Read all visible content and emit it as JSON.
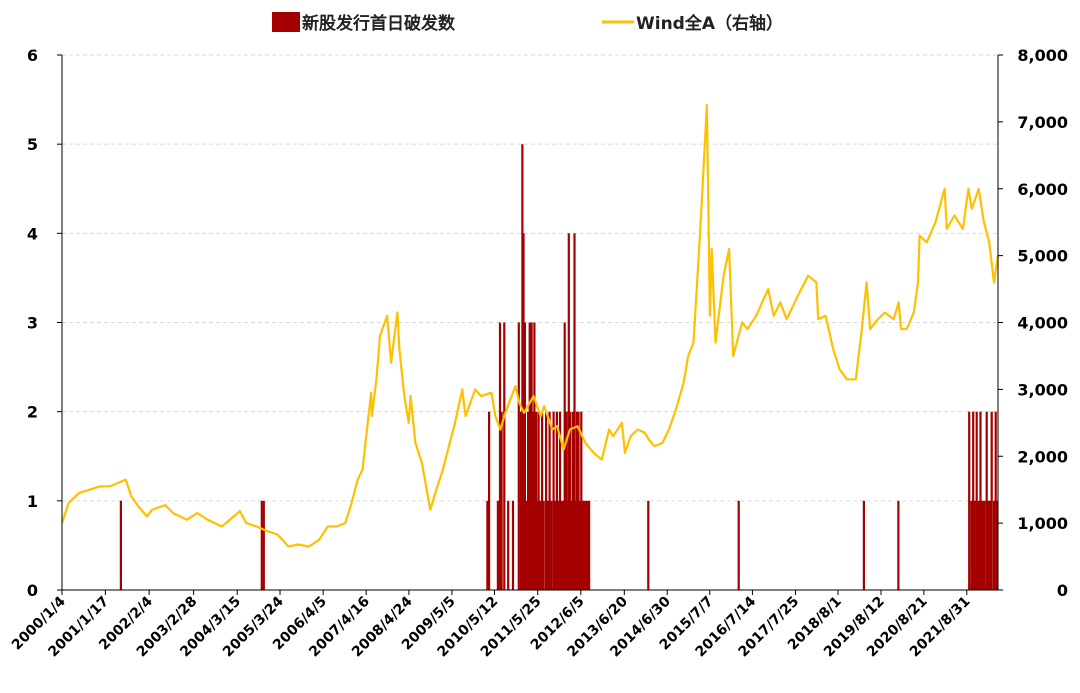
{
  "chart_data": {
    "type": "bar+line",
    "title": "",
    "legend": {
      "position": "top",
      "entries": [
        "新股发行首日破发数",
        "Wind全A（右轴）"
      ]
    },
    "colors": {
      "bars": "#A50000",
      "line": "#FFC000",
      "grid": "#D9D9D9"
    },
    "grid": true,
    "x_date_range": [
      "2000-01-04",
      "2022-05-31"
    ],
    "x_tick_labels": [
      "2000/1/4",
      "2001/1/17",
      "2002/2/4",
      "2003/2/28",
      "2004/3/15",
      "2005/3/24",
      "2006/4/5",
      "2007/4/16",
      "2008/4/24",
      "2009/5/5",
      "2010/5/12",
      "2011/5/25",
      "2012/6/5",
      "2013/6/20",
      "2014/6/30",
      "2015/7/7",
      "2016/7/14",
      "2017/7/25",
      "2018/8/1",
      "2019/8/12",
      "2020/8/21",
      "2021/8/31"
    ],
    "y_left": {
      "ylim": [
        0,
        6
      ],
      "ticks": [
        "0",
        "1",
        "2",
        "3",
        "4",
        "5",
        "6"
      ]
    },
    "y_right": {
      "ylim": [
        0,
        8000
      ],
      "ticks": [
        "0",
        "1,000",
        "2,000",
        "3,000",
        "4,000",
        "5,000",
        "6,000",
        "7,000",
        "8,000"
      ]
    },
    "bar_series": {
      "name": "新股发行首日破发数",
      "points": [
        [
          "2001-06-01",
          1
        ],
        [
          "2004-10-15",
          1
        ],
        [
          "2004-11-01",
          1
        ],
        [
          "2010-03-10",
          1
        ],
        [
          "2010-03-25",
          2
        ],
        [
          "2010-06-10",
          1
        ],
        [
          "2010-06-28",
          3
        ],
        [
          "2010-07-12",
          2
        ],
        [
          "2010-08-05",
          3
        ],
        [
          "2010-09-08",
          1
        ],
        [
          "2010-10-20",
          1
        ],
        [
          "2010-12-10",
          3
        ],
        [
          "2010-12-28",
          2
        ],
        [
          "2011-01-10",
          5
        ],
        [
          "2011-01-20",
          4
        ],
        [
          "2011-02-01",
          3
        ],
        [
          "2011-02-15",
          1
        ],
        [
          "2011-03-01",
          2
        ],
        [
          "2011-03-15",
          3
        ],
        [
          "2011-04-01",
          3
        ],
        [
          "2011-04-12",
          2
        ],
        [
          "2011-04-25",
          3
        ],
        [
          "2011-05-10",
          2
        ],
        [
          "2011-05-20",
          1
        ],
        [
          "2011-06-01",
          2
        ],
        [
          "2011-06-15",
          1
        ],
        [
          "2011-07-01",
          2
        ],
        [
          "2011-07-15",
          1
        ],
        [
          "2011-08-05",
          2
        ],
        [
          "2011-08-20",
          1
        ],
        [
          "2011-09-05",
          2
        ],
        [
          "2011-09-20",
          1
        ],
        [
          "2011-10-10",
          2
        ],
        [
          "2011-10-25",
          1
        ],
        [
          "2011-11-08",
          2
        ],
        [
          "2011-11-22",
          1
        ],
        [
          "2011-12-05",
          2
        ],
        [
          "2011-12-20",
          1
        ],
        [
          "2012-01-05",
          1
        ],
        [
          "2012-01-15",
          3
        ],
        [
          "2012-02-01",
          2
        ],
        [
          "2012-02-10",
          1
        ],
        [
          "2012-02-20",
          4
        ],
        [
          "2012-03-05",
          2
        ],
        [
          "2012-03-15",
          1
        ],
        [
          "2012-03-28",
          2
        ],
        [
          "2012-04-10",
          4
        ],
        [
          "2012-04-20",
          1
        ],
        [
          "2012-05-01",
          2
        ],
        [
          "2012-05-15",
          2
        ],
        [
          "2012-05-25",
          1
        ],
        [
          "2012-06-08",
          2
        ],
        [
          "2012-06-20",
          1
        ],
        [
          "2012-07-02",
          1
        ],
        [
          "2012-07-20",
          1
        ],
        [
          "2012-08-01",
          1
        ],
        [
          "2012-08-15",
          1
        ],
        [
          "2014-01-15",
          1
        ],
        [
          "2016-03-15",
          1
        ],
        [
          "2019-03-15",
          1
        ],
        [
          "2020-01-10",
          1
        ],
        [
          "2021-09-20",
          2
        ],
        [
          "2021-10-10",
          1
        ],
        [
          "2021-10-25",
          2
        ],
        [
          "2021-11-08",
          1
        ],
        [
          "2021-11-25",
          2
        ],
        [
          "2021-12-10",
          1
        ],
        [
          "2021-12-28",
          2
        ],
        [
          "2022-01-15",
          1
        ],
        [
          "2022-02-01",
          1
        ],
        [
          "2022-02-20",
          2
        ],
        [
          "2022-03-05",
          1
        ],
        [
          "2022-03-20",
          1
        ],
        [
          "2022-04-05",
          2
        ],
        [
          "2022-04-25",
          1
        ],
        [
          "2022-05-10",
          2
        ],
        [
          "2022-05-25",
          1
        ]
      ]
    },
    "line_series": {
      "name": "Wind全A（右轴）",
      "points": [
        [
          "2000-01-04",
          1000
        ],
        [
          "2000-03-01",
          1300
        ],
        [
          "2000-06-01",
          1450
        ],
        [
          "2000-09-01",
          1500
        ],
        [
          "2000-12-01",
          1550
        ],
        [
          "2001-03-01",
          1550
        ],
        [
          "2001-06-01",
          1620
        ],
        [
          "2001-07-15",
          1650
        ],
        [
          "2001-09-01",
          1400
        ],
        [
          "2001-11-01",
          1250
        ],
        [
          "2002-01-15",
          1100
        ],
        [
          "2002-03-01",
          1200
        ],
        [
          "2002-06-25",
          1270
        ],
        [
          "2002-09-01",
          1150
        ],
        [
          "2002-12-31",
          1050
        ],
        [
          "2003-04-01",
          1150
        ],
        [
          "2003-07-01",
          1050
        ],
        [
          "2003-11-01",
          950
        ],
        [
          "2004-04-07",
          1180
        ],
        [
          "2004-06-01",
          1000
        ],
        [
          "2004-09-01",
          950
        ],
        [
          "2004-12-01",
          880
        ],
        [
          "2005-03-01",
          830
        ],
        [
          "2005-06-06",
          650
        ],
        [
          "2005-09-01",
          680
        ],
        [
          "2005-12-01",
          650
        ],
        [
          "2006-03-01",
          750
        ],
        [
          "2006-05-15",
          950
        ],
        [
          "2006-08-01",
          950
        ],
        [
          "2006-10-15",
          1000
        ],
        [
          "2006-12-01",
          1250
        ],
        [
          "2007-02-01",
          1650
        ],
        [
          "2007-03-15",
          1800
        ],
        [
          "2007-05-29",
          2950
        ],
        [
          "2007-06-05",
          2600
        ],
        [
          "2007-07-15",
          3150
        ],
        [
          "2007-08-15",
          3800
        ],
        [
          "2007-10-16",
          4100
        ],
        [
          "2007-11-20",
          3400
        ],
        [
          "2008-01-14",
          4150
        ],
        [
          "2008-02-01",
          3600
        ],
        [
          "2008-03-15",
          2900
        ],
        [
          "2008-04-22",
          2500
        ],
        [
          "2008-05-09",
          2900
        ],
        [
          "2008-06-20",
          2200
        ],
        [
          "2008-08-15",
          1900
        ],
        [
          "2008-10-28",
          1200
        ],
        [
          "2008-12-01",
          1400
        ],
        [
          "2009-02-15",
          1800
        ],
        [
          "2009-04-01",
          2100
        ],
        [
          "2009-06-01",
          2500
        ],
        [
          "2009-08-04",
          3000
        ],
        [
          "2009-09-01",
          2600
        ],
        [
          "2009-11-24",
          3000
        ],
        [
          "2010-01-15",
          2900
        ],
        [
          "2010-04-15",
          2950
        ],
        [
          "2010-05-20",
          2600
        ],
        [
          "2010-07-02",
          2400
        ],
        [
          "2010-08-15",
          2650
        ],
        [
          "2010-11-11",
          3050
        ],
        [
          "2010-12-15",
          2800
        ],
        [
          "2011-01-25",
          2650
        ],
        [
          "2011-04-18",
          2900
        ],
        [
          "2011-06-20",
          2600
        ],
        [
          "2011-07-20",
          2750
        ],
        [
          "2011-09-30",
          2400
        ],
        [
          "2011-11-10",
          2450
        ],
        [
          "2012-01-06",
          2100
        ],
        [
          "2012-03-01",
          2400
        ],
        [
          "2012-05-07",
          2450
        ],
        [
          "2012-07-15",
          2200
        ],
        [
          "2012-09-25",
          2050
        ],
        [
          "2012-12-04",
          1950
        ],
        [
          "2013-02-07",
          2400
        ],
        [
          "2013-03-15",
          2300
        ],
        [
          "2013-05-30",
          2500
        ],
        [
          "2013-06-25",
          2050
        ],
        [
          "2013-08-15",
          2300
        ],
        [
          "2013-10-15",
          2400
        ],
        [
          "2013-12-15",
          2350
        ],
        [
          "2014-01-20",
          2250
        ],
        [
          "2014-03-10",
          2150
        ],
        [
          "2014-05-20",
          2200
        ],
        [
          "2014-07-15",
          2400
        ],
        [
          "2014-09-15",
          2700
        ],
        [
          "2014-11-20",
          3100
        ],
        [
          "2014-12-31",
          3500
        ],
        [
          "2015-02-15",
          3700
        ],
        [
          "2015-04-15",
          5400
        ],
        [
          "2015-06-12",
          7250
        ],
        [
          "2015-07-08",
          4100
        ],
        [
          "2015-07-24",
          5100
        ],
        [
          "2015-08-26",
          3700
        ],
        [
          "2015-11-05",
          4700
        ],
        [
          "2015-12-23",
          5100
        ],
        [
          "2016-01-28",
          3500
        ],
        [
          "2016-04-15",
          4000
        ],
        [
          "2016-06-01",
          3900
        ],
        [
          "2016-08-15",
          4100
        ],
        [
          "2016-11-29",
          4500
        ],
        [
          "2017-01-16",
          4100
        ],
        [
          "2017-03-15",
          4300
        ],
        [
          "2017-05-10",
          4050
        ],
        [
          "2017-08-15",
          4400
        ],
        [
          "2017-11-13",
          4700
        ],
        [
          "2018-01-24",
          4600
        ],
        [
          "2018-02-09",
          4050
        ],
        [
          "2018-04-15",
          4100
        ],
        [
          "2018-06-20",
          3600
        ],
        [
          "2018-08-15",
          3300
        ],
        [
          "2018-10-18",
          3150
        ],
        [
          "2019-01-04",
          3150
        ],
        [
          "2019-02-25",
          3900
        ],
        [
          "2019-04-08",
          4600
        ],
        [
          "2019-05-10",
          3900
        ],
        [
          "2019-07-15",
          4050
        ],
        [
          "2019-09-15",
          4150
        ],
        [
          "2019-12-01",
          4050
        ],
        [
          "2020-01-14",
          4300
        ],
        [
          "2020-02-03",
          3900
        ],
        [
          "2020-03-23",
          3900
        ],
        [
          "2020-05-25",
          4150
        ],
        [
          "2020-07-01",
          4600
        ],
        [
          "2020-07-15",
          5300
        ],
        [
          "2020-09-15",
          5200
        ],
        [
          "2020-12-01",
          5500
        ],
        [
          "2021-02-18",
          6000
        ],
        [
          "2021-03-09",
          5400
        ],
        [
          "2021-05-15",
          5600
        ],
        [
          "2021-07-28",
          5400
        ],
        [
          "2021-09-14",
          6000
        ],
        [
          "2021-10-15",
          5700
        ],
        [
          "2021-12-13",
          6000
        ],
        [
          "2022-01-28",
          5500
        ],
        [
          "2022-03-15",
          5200
        ],
        [
          "2022-04-26",
          4600
        ],
        [
          "2022-05-31",
          5000
        ]
      ]
    }
  }
}
